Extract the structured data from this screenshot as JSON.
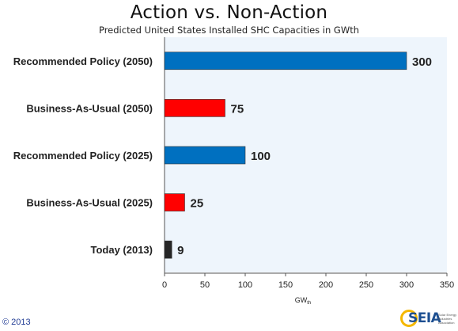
{
  "chart_data": {
    "type": "bar",
    "orientation": "horizontal",
    "title": "Action vs. Non-Action",
    "subtitle": "Predicted United States Installed SHC Capacities in GWth",
    "xlabel": "GW",
    "xlabel_subscript": "th",
    "categories": [
      "Recommended Policy (2050)",
      "Business-As-Usual (2050)",
      "Recommended Policy (2025)",
      "Business-As-Usual (2025)",
      "Today (2013)"
    ],
    "values": [
      300,
      75,
      100,
      25,
      9
    ],
    "bar_colors": [
      "#0070c0",
      "#ff0000",
      "#0070c0",
      "#ff0000",
      "#262626"
    ],
    "data_labels": [
      "300",
      "75",
      "100",
      "25",
      "9"
    ],
    "xlim": [
      0,
      350
    ],
    "xticks": [
      0,
      50,
      100,
      150,
      200,
      250,
      300,
      350
    ],
    "grid": false,
    "plot_background": "#eef5fc"
  },
  "footer": {
    "copyright": "© 2013",
    "logo_text": "SEIA",
    "logo_subtext": "Solar Energy Industries Association"
  }
}
